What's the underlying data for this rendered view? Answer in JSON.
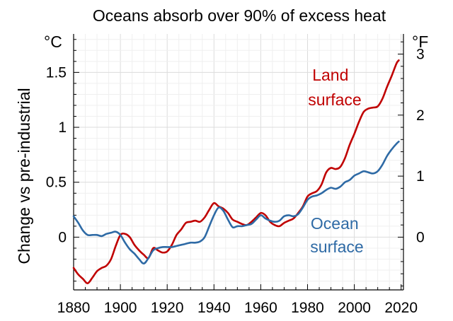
{
  "chart_data": {
    "type": "line",
    "title": "Oceans absorb over 90% of excess heat",
    "ylabel": "Change vs pre-industrial",
    "y_unit_left": "°C",
    "y_unit_right": "°F",
    "xlim": [
      1880,
      2021
    ],
    "ylim": [
      -0.48,
      1.85
    ],
    "x_ticks": [
      "1880",
      "1900",
      "1920",
      "1940",
      "1960",
      "1980",
      "2000",
      "2020"
    ],
    "y_ticks_left": [
      "0",
      "0.5",
      "1",
      "1.5"
    ],
    "y_ticks_right": [
      "0",
      "1",
      "2",
      "3"
    ],
    "grid": true,
    "series": [
      {
        "name": "Land surface",
        "label_lines": [
          "Land",
          "surface"
        ],
        "color": "#c00000",
        "x": [
          1880,
          1882,
          1884,
          1886,
          1888,
          1890,
          1892,
          1894,
          1896,
          1898,
          1900,
          1902,
          1904,
          1906,
          1908,
          1910,
          1912,
          1914,
          1916,
          1918,
          1920,
          1922,
          1924,
          1926,
          1928,
          1930,
          1932,
          1934,
          1936,
          1938,
          1940,
          1942,
          1944,
          1946,
          1948,
          1950,
          1952,
          1954,
          1956,
          1958,
          1960,
          1962,
          1964,
          1966,
          1968,
          1970,
          1972,
          1974,
          1976,
          1978,
          1980,
          1982,
          1984,
          1986,
          1988,
          1990,
          1992,
          1994,
          1996,
          1998,
          2000,
          2002,
          2004,
          2006,
          2008,
          2010,
          2012,
          2014,
          2016,
          2018,
          2019
        ],
        "values": [
          -0.28,
          -0.34,
          -0.38,
          -0.42,
          -0.37,
          -0.31,
          -0.28,
          -0.26,
          -0.2,
          -0.08,
          0.02,
          0.03,
          0.0,
          -0.07,
          -0.12,
          -0.16,
          -0.19,
          -0.1,
          -0.12,
          -0.14,
          -0.13,
          -0.07,
          0.02,
          0.07,
          0.13,
          0.14,
          0.15,
          0.14,
          0.18,
          0.25,
          0.31,
          0.28,
          0.26,
          0.22,
          0.16,
          0.14,
          0.12,
          0.11,
          0.14,
          0.18,
          0.22,
          0.2,
          0.14,
          0.11,
          0.1,
          0.13,
          0.15,
          0.17,
          0.22,
          0.28,
          0.37,
          0.4,
          0.42,
          0.48,
          0.59,
          0.63,
          0.62,
          0.64,
          0.72,
          0.84,
          0.94,
          1.05,
          1.14,
          1.17,
          1.18,
          1.19,
          1.26,
          1.37,
          1.47,
          1.58,
          1.61
        ]
      },
      {
        "name": "Ocean surface",
        "label_lines": [
          "Ocean",
          "surface"
        ],
        "color": "#2e6aa5",
        "x": [
          1880,
          1882,
          1884,
          1886,
          1888,
          1890,
          1892,
          1894,
          1896,
          1898,
          1900,
          1902,
          1904,
          1906,
          1908,
          1910,
          1912,
          1914,
          1916,
          1918,
          1920,
          1922,
          1924,
          1926,
          1928,
          1930,
          1932,
          1934,
          1936,
          1938,
          1940,
          1942,
          1944,
          1946,
          1948,
          1950,
          1952,
          1954,
          1956,
          1958,
          1960,
          1962,
          1964,
          1966,
          1968,
          1970,
          1972,
          1974,
          1976,
          1978,
          1980,
          1982,
          1984,
          1986,
          1988,
          1990,
          1992,
          1994,
          1996,
          1998,
          2000,
          2002,
          2004,
          2006,
          2008,
          2010,
          2012,
          2014,
          2016,
          2018,
          2019
        ],
        "values": [
          0.19,
          0.13,
          0.06,
          0.02,
          0.02,
          0.02,
          0.01,
          0.03,
          0.04,
          0.05,
          0.02,
          -0.05,
          -0.11,
          -0.15,
          -0.2,
          -0.24,
          -0.19,
          -0.12,
          -0.1,
          -0.09,
          -0.09,
          -0.09,
          -0.08,
          -0.07,
          -0.06,
          -0.05,
          -0.05,
          -0.04,
          0.0,
          0.1,
          0.2,
          0.27,
          0.24,
          0.16,
          0.09,
          0.1,
          0.1,
          0.11,
          0.12,
          0.16,
          0.2,
          0.17,
          0.15,
          0.14,
          0.15,
          0.19,
          0.2,
          0.19,
          0.21,
          0.27,
          0.34,
          0.37,
          0.38,
          0.4,
          0.43,
          0.45,
          0.44,
          0.46,
          0.5,
          0.52,
          0.56,
          0.58,
          0.6,
          0.59,
          0.58,
          0.6,
          0.66,
          0.74,
          0.8,
          0.85,
          0.87
        ]
      }
    ]
  }
}
